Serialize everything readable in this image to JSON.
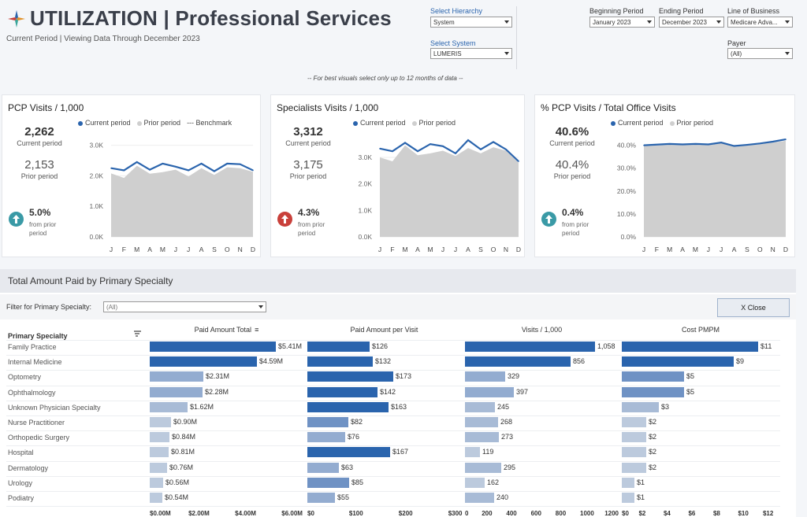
{
  "header": {
    "title": "UTILIZATION | Professional Services",
    "subtitle": "Current Period | Viewing Data Through December 2023",
    "note": "-- For best visuals select only up to 12 months of data --"
  },
  "filters": {
    "hierarchy": {
      "label": "Select Hierarchy",
      "value": "System"
    },
    "system": {
      "label": "Select System",
      "value": "LUMERIS"
    },
    "beginning": {
      "label": "Beginning Period",
      "value": "January 2023"
    },
    "ending": {
      "label": "Ending Period",
      "value": "December 2023"
    },
    "lob": {
      "label": "Line of Business",
      "value": "Medicare Adva..."
    },
    "payer": {
      "label": "Payer",
      "value": "(All)"
    }
  },
  "colors": {
    "current": "#2a64ad",
    "prior": "#cfcfcf",
    "up_good": "#3a9aa6",
    "up_bad": "#c9403a"
  },
  "cards": [
    {
      "title": "PCP Visits / 1,000",
      "legend": [
        "Current period",
        "Prior period",
        "Benchmark"
      ],
      "current_value": "2,262",
      "current_label": "Current period",
      "prior_value": "2,153",
      "prior_label": "Prior period",
      "change": "5.0%",
      "change_label": "from prior period",
      "change_direction": "up-good",
      "yticks": [
        "3.0K",
        "2.0K",
        "1.0K",
        "0.0K"
      ]
    },
    {
      "title": "Specialists Visits / 1,000",
      "legend": [
        "Current period",
        "Prior period"
      ],
      "current_value": "3,312",
      "current_label": "Current period",
      "prior_value": "3,175",
      "prior_label": "Prior period",
      "change": "4.3%",
      "change_label": "from prior period",
      "change_direction": "up-bad",
      "yticks": [
        "3.0K",
        "2.0K",
        "1.0K",
        "0.0K"
      ]
    },
    {
      "title": "% PCP Visits / Total Office Visits",
      "legend": [
        "Current period",
        "Prior period"
      ],
      "current_value": "40.6%",
      "current_label": "Current period",
      "prior_value": "40.4%",
      "prior_label": "Prior period",
      "change": "0.4%",
      "change_label": "from prior period",
      "change_direction": "up-good",
      "yticks": [
        "40.0%",
        "30.0%",
        "20.0%",
        "10.0%",
        "0.0%"
      ]
    }
  ],
  "chart_data": [
    {
      "type": "line",
      "title": "PCP Visits / 1,000",
      "x": [
        "J",
        "F",
        "M",
        "A",
        "M",
        "J",
        "J",
        "A",
        "S",
        "O",
        "N",
        "D"
      ],
      "ylim": [
        0,
        3300
      ],
      "series": [
        {
          "name": "Current period",
          "values": [
            2250,
            2180,
            2450,
            2200,
            2400,
            2300,
            2180,
            2400,
            2150,
            2400,
            2380,
            2180
          ]
        },
        {
          "name": "Prior period",
          "values": [
            2080,
            1930,
            2330,
            2070,
            2120,
            2200,
            1980,
            2250,
            2030,
            2280,
            2250,
            2130
          ]
        }
      ]
    },
    {
      "type": "line",
      "title": "Specialists Visits / 1,000",
      "x": [
        "J",
        "F",
        "M",
        "A",
        "M",
        "J",
        "J",
        "A",
        "S",
        "O",
        "N",
        "D"
      ],
      "ylim": [
        0,
        3800
      ],
      "series": [
        {
          "name": "Current period",
          "values": [
            3330,
            3230,
            3550,
            3230,
            3500,
            3420,
            3150,
            3650,
            3300,
            3580,
            3300,
            2850
          ]
        },
        {
          "name": "Prior period",
          "values": [
            3000,
            2850,
            3450,
            3080,
            3150,
            3250,
            3050,
            3350,
            3150,
            3380,
            3250,
            2800
          ]
        }
      ]
    },
    {
      "type": "line",
      "title": "% PCP Visits / Total Office Visits",
      "x": [
        "J",
        "F",
        "M",
        "A",
        "M",
        "J",
        "J",
        "A",
        "S",
        "O",
        "N",
        "D"
      ],
      "ylim": [
        0,
        44
      ],
      "series": [
        {
          "name": "Current period",
          "values": [
            40.0,
            40.3,
            40.6,
            40.4,
            40.6,
            40.4,
            41.2,
            39.7,
            40.2,
            40.8,
            41.6,
            42.6
          ]
        },
        {
          "name": "Prior period",
          "values": [
            39.6,
            39.9,
            40.2,
            40.0,
            40.2,
            40.0,
            40.8,
            39.3,
            39.9,
            40.4,
            41.2,
            42.0
          ]
        }
      ]
    }
  ],
  "bottom": {
    "title": "Total Amount Paid by Primary Specialty",
    "filter_label": "Filter for Primary Specialty:",
    "filter_value": "(All)",
    "close_label": "X Close",
    "row_header": "Primary Specialty",
    "columns": [
      "Paid Amount Total",
      "Paid Amount per Visit",
      "Visits / 1,000",
      "Cost PMPM"
    ],
    "axes": [
      [
        "$0.00M",
        "$2.00M",
        "$4.00M",
        "$6.00M"
      ],
      [
        "$0",
        "$100",
        "$200",
        "$300"
      ],
      [
        "0",
        "200",
        "400",
        "600",
        "800",
        "1000",
        "1200"
      ],
      [
        "$0",
        "$2",
        "$4",
        "$6",
        "$8",
        "$10",
        "$12"
      ]
    ],
    "rows": [
      {
        "name": "Family Practice",
        "labels": [
          "$5.41M",
          "$126",
          "1,058",
          "$11"
        ]
      },
      {
        "name": "Internal Medicine",
        "labels": [
          "$4.59M",
          "$132",
          "856",
          "$9"
        ]
      },
      {
        "name": "Optometry",
        "labels": [
          "$2.31M",
          "$173",
          "329",
          "$5"
        ]
      },
      {
        "name": "Ophthalmology",
        "labels": [
          "$2.28M",
          "$142",
          "397",
          "$5"
        ]
      },
      {
        "name": "Unknown Physician Specialty",
        "labels": [
          "$1.62M",
          "$163",
          "245",
          "$3"
        ]
      },
      {
        "name": "Nurse Practitioner",
        "labels": [
          "$0.90M",
          "$82",
          "268",
          "$2"
        ]
      },
      {
        "name": "Orthopedic Surgery",
        "labels": [
          "$0.84M",
          "$76",
          "273",
          "$2"
        ]
      },
      {
        "name": "Hospital",
        "labels": [
          "$0.81M",
          "$167",
          "119",
          "$2"
        ]
      },
      {
        "name": "Dermatology",
        "labels": [
          "$0.76M",
          "$63",
          "295",
          "$2"
        ]
      },
      {
        "name": "Urology",
        "labels": [
          "$0.56M",
          "$85",
          "162",
          "$1"
        ]
      },
      {
        "name": "Podiatry",
        "labels": [
          "$0.54M",
          "$55",
          "240",
          "$1"
        ]
      }
    ],
    "values": [
      [
        5.41,
        4.59,
        2.31,
        2.28,
        1.62,
        0.9,
        0.84,
        0.81,
        0.76,
        0.56,
        0.54
      ],
      [
        126,
        132,
        173,
        142,
        163,
        82,
        76,
        167,
        63,
        85,
        55
      ],
      [
        1058,
        856,
        329,
        397,
        245,
        268,
        273,
        119,
        295,
        162,
        240
      ],
      [
        11,
        9,
        5,
        5,
        3,
        2,
        2,
        2,
        2,
        1,
        1
      ]
    ],
    "maxes": [
      6.6,
      310,
      1250,
      12.7
    ]
  }
}
